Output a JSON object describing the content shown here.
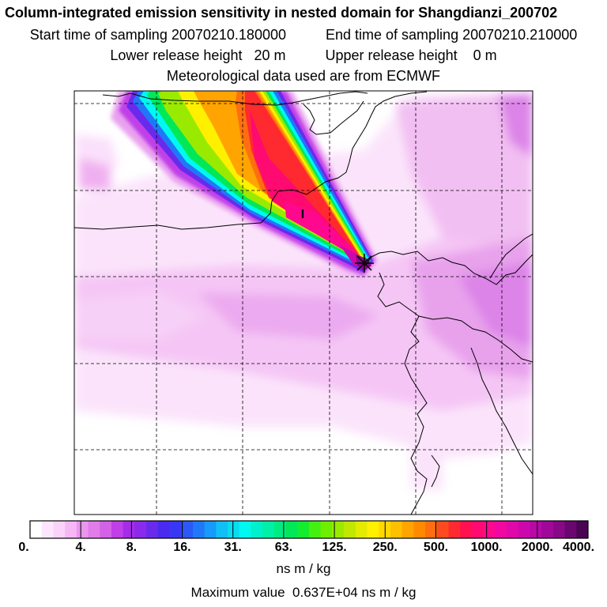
{
  "header": {
    "title": "Column-integrated emission sensitivity in nested domain for Shangdianzi_200702",
    "start_label": "Start time of sampling 20070210.180000",
    "end_label": "End time of sampling 20070210.210000",
    "lower_label": "Lower release height   20 m",
    "upper_label": "Upper release height    0 m",
    "met_label": "Meteorological data used are from ECMWF"
  },
  "map": {
    "receptor_marker": "I",
    "receptor_icon": "asterisk-source-icon"
  },
  "colorbar": {
    "ticks": [
      "0.",
      "4.",
      "8.",
      "16.",
      "31.",
      "63.",
      "125.",
      "250.",
      "500.",
      "1000.",
      "2000.",
      "4000."
    ],
    "colors": [
      "#ffffff",
      "#fde6fd",
      "#fad2fa",
      "#f5b8f5",
      "#ea96ef",
      "#e07de9",
      "#d462e6",
      "#c03fe8",
      "#a52ce8",
      "#8a2aea",
      "#6a2aec",
      "#4a2aee",
      "#3838f4",
      "#2c58f6",
      "#2078f8",
      "#189af8",
      "#10bff6",
      "#08dcf2",
      "#00f8f0",
      "#00f0cc",
      "#00f0a8",
      "#00ec80",
      "#00e858",
      "#14ec30",
      "#44f010",
      "#70ee00",
      "#9aea00",
      "#c0e800",
      "#e4ea00",
      "#fff000",
      "#ffd800",
      "#ffc000",
      "#ffa400",
      "#ff8a00",
      "#ff6e10",
      "#ff4a20",
      "#ff2a30",
      "#ff1050",
      "#ff0a70",
      "#ff0890",
      "#f008a0",
      "#e008aa",
      "#cc08ac",
      "#b808a8",
      "#a0089a",
      "#880888",
      "#6a0670",
      "#4a0454"
    ],
    "unit": "ns m / kg"
  },
  "footer": {
    "max_value": "Maximum value  0.637E+04 ns m / kg"
  }
}
